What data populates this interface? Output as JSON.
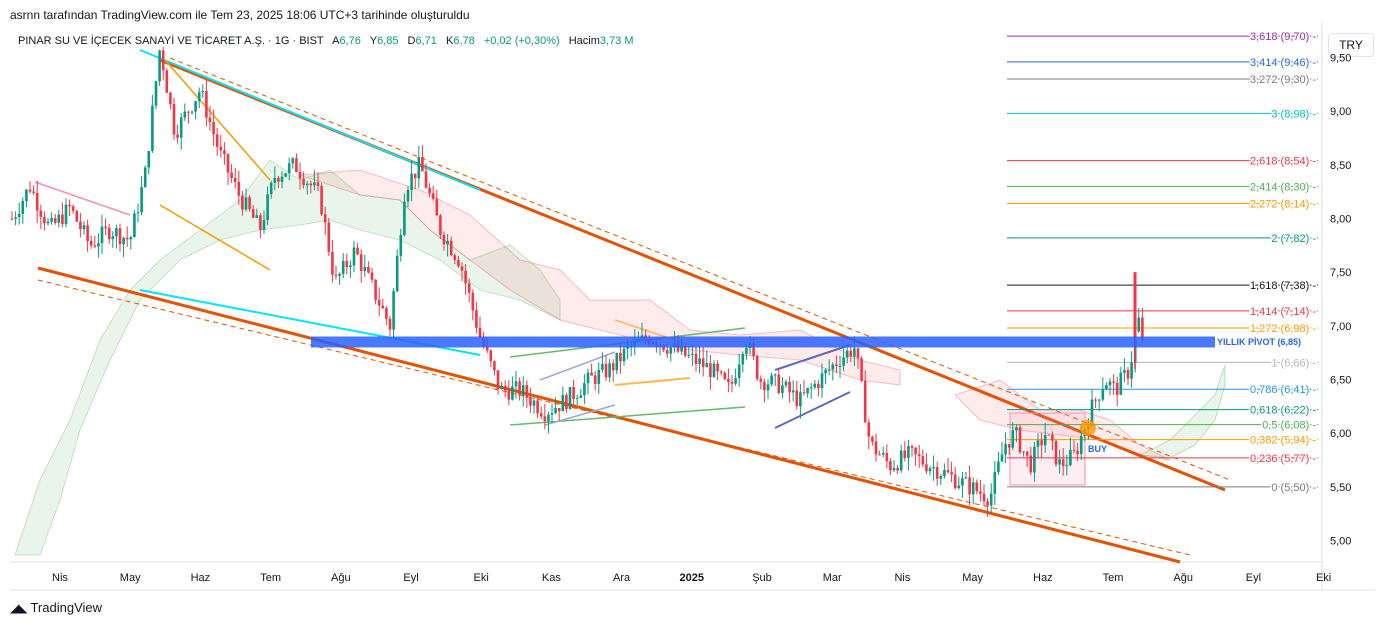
{
  "header": {
    "created_line": "asrnn tarafından TradingView.com ile Tem 23, 2025 18:06 UTC+3 tarihinde oluşturuldu",
    "symbol": "PINAR SU VE İÇECEK SANAYİ VE TİCARET A.Ş. · 1G · BIST",
    "open_label": "A",
    "open": "6,76",
    "high_label": "Y",
    "high": "6,85",
    "low_label": "D",
    "low": "6,71",
    "close_label": "K",
    "close": "6,78",
    "change": "+0,02 (+0,30%)",
    "volume_label": "Hacim",
    "volume": "3,73 M"
  },
  "currency": "TRY",
  "brand": "TradingView",
  "chart_data": {
    "type": "candlestick",
    "x_ticks": [
      "Nis",
      "May",
      "Haz",
      "Tem",
      "Ağu",
      "Eyl",
      "Eki",
      "Kas",
      "Ara",
      "2025",
      "Şub",
      "Mar",
      "Nis",
      "May",
      "Haz",
      "Tem",
      "Ağu",
      "Eyl",
      "Eki"
    ],
    "y_ticks": [
      "9,50",
      "9,00",
      "8,50",
      "8,00",
      "7,50",
      "7,00",
      "6,50",
      "6,00",
      "5,50",
      "5,00"
    ],
    "y_tick_values": [
      9.5,
      9.0,
      8.5,
      8.0,
      7.5,
      7.0,
      6.5,
      6.0,
      5.5,
      5.0
    ],
    "ylim": [
      4.8,
      9.85
    ],
    "fib_levels": [
      {
        "label": "3,618 (9,70)",
        "value": 9.7,
        "color": "#9c27b0"
      },
      {
        "label": "3,414 (9,46)",
        "value": 9.46,
        "color": "#2962ff"
      },
      {
        "label": "3,272 (9,30)",
        "value": 9.3,
        "color": "#787b86"
      },
      {
        "label": "3 (8,98)",
        "value": 8.98,
        "color": "#00bcd4"
      },
      {
        "label": "2,618 (8,54)",
        "value": 8.54,
        "color": "#f23645"
      },
      {
        "label": "2,414 (8,30)",
        "value": 8.3,
        "color": "#4caf50"
      },
      {
        "label": "2,272 (8,14)",
        "value": 8.14,
        "color": "#ff9800"
      },
      {
        "label": "2 (7,82)",
        "value": 7.82,
        "color": "#089981"
      },
      {
        "label": "1,618 (7,38)",
        "value": 7.38,
        "color": "#131722"
      },
      {
        "label": "1,414 (7,14)",
        "value": 7.14,
        "color": "#f23645"
      },
      {
        "label": "1,272 (6,98)",
        "value": 6.98,
        "color": "#ff9800"
      },
      {
        "label": "1 (6,66)",
        "value": 6.66,
        "color": "#b2b5be"
      },
      {
        "label": "0,786 (6,41)",
        "value": 6.41,
        "color": "#2196f3"
      },
      {
        "label": "0,618 (6,22)",
        "value": 6.22,
        "color": "#089981"
      },
      {
        "label": "0,5 (6,08)",
        "value": 6.08,
        "color": "#4caf50"
      },
      {
        "label": "0,382 (5,94)",
        "value": 5.94,
        "color": "#ff9800"
      },
      {
        "label": "0,236 (5,77)",
        "value": 5.77,
        "color": "#f23645"
      },
      {
        "label": "0 (5,50)",
        "value": 5.5,
        "color": "#787b86"
      }
    ],
    "pivot": {
      "label": "YILLIK PİVOT (6,85)",
      "value": 6.85,
      "color": "#2962ff"
    },
    "buy_label": "BUY",
    "colors": {
      "up": "#089981",
      "down": "#f23645",
      "channel": "#e65100",
      "cyan": "#00e5ff"
    }
  }
}
